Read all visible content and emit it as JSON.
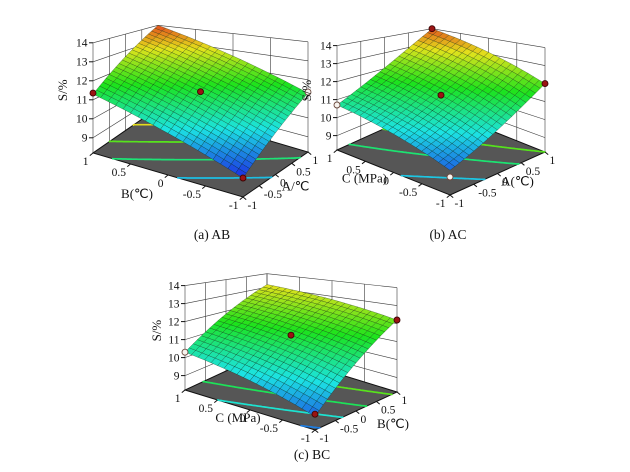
{
  "page": {
    "background": "#ffffff"
  },
  "chart_data": [
    {
      "id": "ab",
      "type": "surface3d",
      "caption": "(a) AB",
      "z_axis": {
        "label": "S/%",
        "ticks": [
          9,
          10,
          11,
          12,
          13,
          14
        ],
        "range": [
          9,
          14
        ]
      },
      "x_axis": {
        "label": "A/℃",
        "tick_labels": [
          "-1",
          "-0.5",
          "0",
          "0.5",
          "1"
        ],
        "tick_values": [
          -1,
          -0.5,
          0,
          0.5,
          1
        ],
        "range": [
          -1,
          1
        ]
      },
      "y_axis": {
        "label": "B(℃)",
        "tick_labels": [
          "-1",
          "-0.5",
          "0",
          "0.5",
          "1"
        ],
        "tick_values": [
          -1,
          -0.5,
          0,
          0.5,
          1
        ],
        "range": [
          -1,
          1
        ]
      },
      "surface_model": {
        "c0": 11.4,
        "cx": 1.25,
        "cy": 1.25,
        "cxy": 0.1,
        "cxx": 0.0,
        "cyy": 0.0
      },
      "corner_values": {
        "front_-1_-1": 9.0,
        "left_-1_+1": 11.3,
        "right_+1_-1": 11.3,
        "back_+1_+1": 14.0,
        "center_0_0": 11.4
      },
      "design_points": [
        {
          "x": -1,
          "y": 1,
          "z": 11.35,
          "filled": true
        },
        {
          "x": 0,
          "y": 0,
          "z": 11.4,
          "filled": true
        },
        {
          "x": -1,
          "y": -1,
          "z": 9.0,
          "filled": true
        },
        {
          "x": 1,
          "y": -1,
          "z": 11.35,
          "filled": false
        }
      ],
      "contour_levels": [
        10,
        11,
        12,
        13
      ],
      "color_range": [
        8.9,
        14.3
      ],
      "floor_color": "#565656"
    },
    {
      "id": "ac",
      "type": "surface3d",
      "caption": "(b) AC",
      "z_axis": {
        "label": "S/%",
        "ticks": [
          9,
          10,
          11,
          12,
          13,
          14
        ],
        "range": [
          9,
          14
        ]
      },
      "x_axis": {
        "label": "A(℃)",
        "tick_labels": [
          "-1",
          "-0.5",
          "0",
          "0.5",
          "1"
        ],
        "tick_values": [
          -1,
          -0.5,
          0,
          0.5,
          1
        ],
        "range": [
          -1,
          1
        ]
      },
      "y_axis": {
        "label": "C (MPa)",
        "tick_labels": [
          "-1",
          "-0.5",
          "0",
          "0.5",
          "1"
        ],
        "tick_values": [
          -1,
          -0.5,
          0,
          0.5,
          1
        ],
        "range": [
          -1,
          1
        ]
      },
      "surface_model": {
        "c0": 11.3,
        "cx": 1.5,
        "cy": 0.85,
        "cxy": 0.15,
        "cxx": 0.3,
        "cyy": -0.1
      },
      "corner_values": {
        "front_-1_-1": 9.3,
        "left_-1_+1": 10.7,
        "right_+1_-1": 12.0,
        "back_+1_+1": 14.0,
        "center_0_0": 11.3
      },
      "design_points": [
        {
          "x": 1,
          "y": 1,
          "z": 14.0,
          "filled": true
        },
        {
          "x": 1,
          "y": -1,
          "z": 12.0,
          "filled": true
        },
        {
          "x": 0,
          "y": 0,
          "z": 11.3,
          "filled": true
        },
        {
          "x": -1,
          "y": 1,
          "z": 10.7,
          "filled": false
        },
        {
          "x": -1,
          "y": -1,
          "z": 9.0,
          "filled": false
        }
      ],
      "contour_levels": [
        10,
        11,
        12,
        13
      ],
      "color_range": [
        8.8,
        14.4
      ],
      "floor_color": "#565656"
    },
    {
      "id": "bc",
      "type": "surface3d",
      "caption": "(c) BC",
      "z_axis": {
        "label": "S/%",
        "ticks": [
          9,
          10,
          11,
          12,
          13,
          14
        ],
        "range": [
          9,
          14
        ]
      },
      "x_axis": {
        "label": "B(℃)",
        "tick_labels": [
          "-1",
          "-0.5",
          "0",
          "0.5",
          "1"
        ],
        "tick_values": [
          -1,
          -0.5,
          0,
          0.5,
          1
        ],
        "range": [
          -1,
          1
        ]
      },
      "y_axis": {
        "label": "C (MPa)",
        "tick_labels": [
          "-1",
          "-0.5",
          "0",
          "0.5",
          "1"
        ],
        "tick_values": [
          -1,
          -0.5,
          0,
          0.5,
          1
        ],
        "range": [
          -1,
          1
        ]
      },
      "surface_model": {
        "c0": 11.3,
        "cx": 1.575,
        "cy": 0.625,
        "cxy": -0.125,
        "cxx": -0.075,
        "cyy": -0.1
      },
      "corner_values": {
        "front_-1_-1": 8.8,
        "left_-1_+1": 10.3,
        "right_+1_-1": 12.2,
        "back_+1_+1": 13.2,
        "center_0_0": 11.3
      },
      "design_points": [
        {
          "x": 1,
          "y": -1,
          "z": 12.2,
          "filled": true
        },
        {
          "x": 0,
          "y": 0,
          "z": 11.3,
          "filled": true
        },
        {
          "x": -1,
          "y": -1,
          "z": 8.9,
          "filled": true
        },
        {
          "x": -1,
          "y": 1,
          "z": 10.3,
          "filled": false
        }
      ],
      "contour_levels": [
        9,
        10,
        11,
        12,
        13
      ],
      "color_range": [
        8.2,
        14.8
      ],
      "floor_color": "#565656"
    }
  ]
}
